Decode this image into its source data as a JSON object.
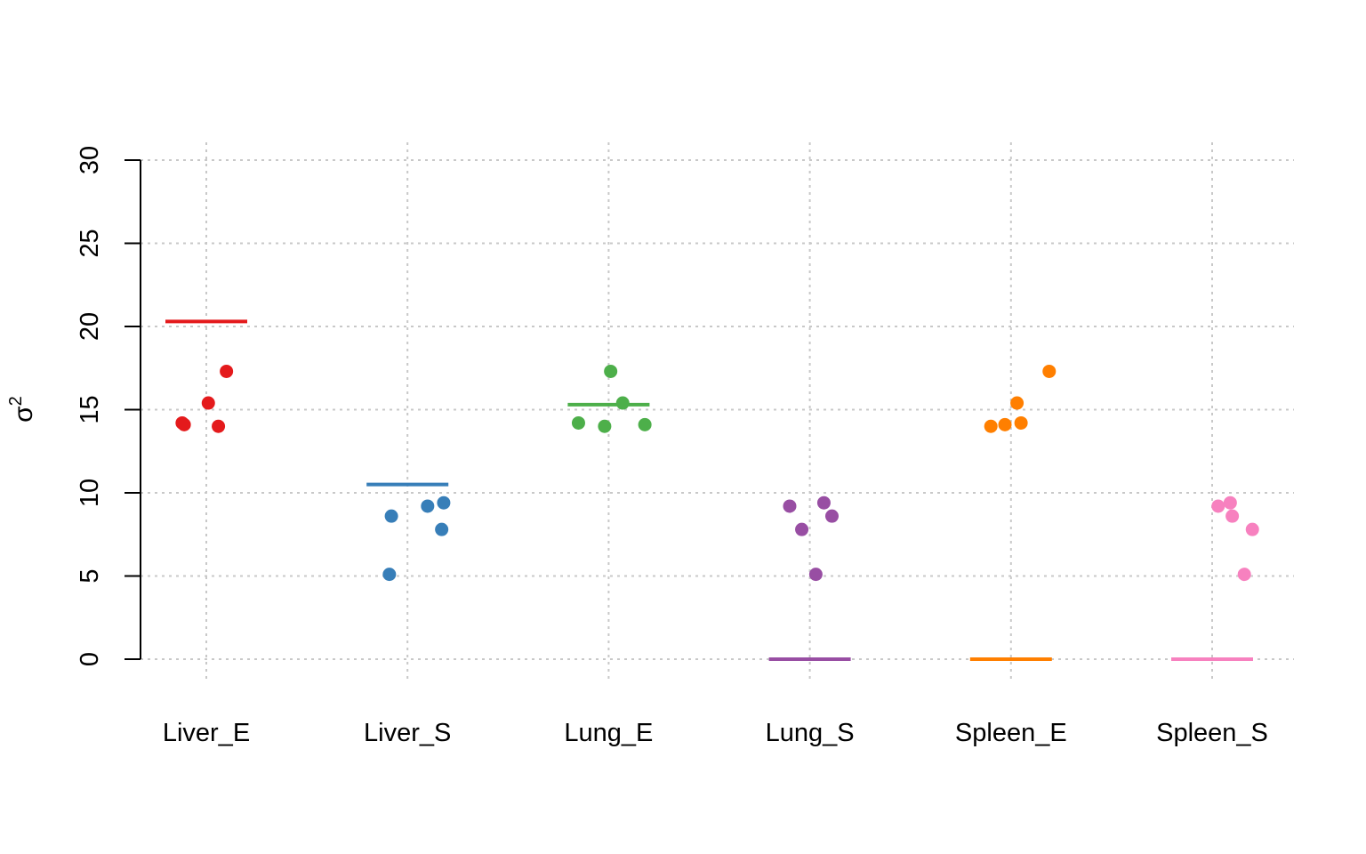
{
  "chart_data": {
    "type": "scatter",
    "ylabel": "σ",
    "ylabel_superscript": "2",
    "categories": [
      "Liver_E",
      "Liver_S",
      "Lung_E",
      "Lung_S",
      "Spleen_E",
      "Spleen_S"
    ],
    "colors": [
      "#e41a1c",
      "#377eb8",
      "#4daf4a",
      "#984ea3",
      "#ff7f00",
      "#f781bf"
    ],
    "ylim": [
      0,
      30
    ],
    "yticks": [
      "0",
      "5",
      "10",
      "15",
      "20",
      "25",
      "30"
    ],
    "grid": true,
    "series": [
      {
        "category": "Liver_E",
        "points": [
          {
            "jitter": -0.12,
            "y": 14.2
          },
          {
            "jitter": -0.11,
            "y": 14.1
          },
          {
            "jitter": 0.01,
            "y": 15.4
          },
          {
            "jitter": 0.06,
            "y": 14.0
          },
          {
            "jitter": 0.1,
            "y": 17.3
          }
        ],
        "line": 20.3
      },
      {
        "category": "Liver_S",
        "points": [
          {
            "jitter": -0.08,
            "y": 8.6
          },
          {
            "jitter": -0.09,
            "y": 5.1
          },
          {
            "jitter": 0.1,
            "y": 9.2
          },
          {
            "jitter": 0.18,
            "y": 9.4
          },
          {
            "jitter": 0.17,
            "y": 7.8
          }
        ],
        "line": 10.5
      },
      {
        "category": "Lung_E",
        "points": [
          {
            "jitter": -0.15,
            "y": 14.2
          },
          {
            "jitter": 0.01,
            "y": 17.3
          },
          {
            "jitter": 0.07,
            "y": 15.4
          },
          {
            "jitter": -0.02,
            "y": 14.0
          },
          {
            "jitter": 0.18,
            "y": 14.1
          }
        ],
        "line": 15.3
      },
      {
        "category": "Lung_S",
        "points": [
          {
            "jitter": -0.1,
            "y": 9.2
          },
          {
            "jitter": -0.04,
            "y": 7.8
          },
          {
            "jitter": 0.03,
            "y": 5.1
          },
          {
            "jitter": 0.07,
            "y": 9.4
          },
          {
            "jitter": 0.11,
            "y": 8.6
          }
        ],
        "line": 0.0
      },
      {
        "category": "Spleen_E",
        "points": [
          {
            "jitter": -0.1,
            "y": 14.0
          },
          {
            "jitter": -0.03,
            "y": 14.1
          },
          {
            "jitter": 0.03,
            "y": 15.4
          },
          {
            "jitter": 0.05,
            "y": 14.2
          },
          {
            "jitter": 0.19,
            "y": 17.3
          }
        ],
        "line": 0.0
      },
      {
        "category": "Spleen_S",
        "points": [
          {
            "jitter": 0.03,
            "y": 9.2
          },
          {
            "jitter": 0.09,
            "y": 9.4
          },
          {
            "jitter": 0.1,
            "y": 8.6
          },
          {
            "jitter": 0.16,
            "y": 5.1
          },
          {
            "jitter": 0.2,
            "y": 7.8
          }
        ],
        "line": 0.0
      }
    ]
  }
}
